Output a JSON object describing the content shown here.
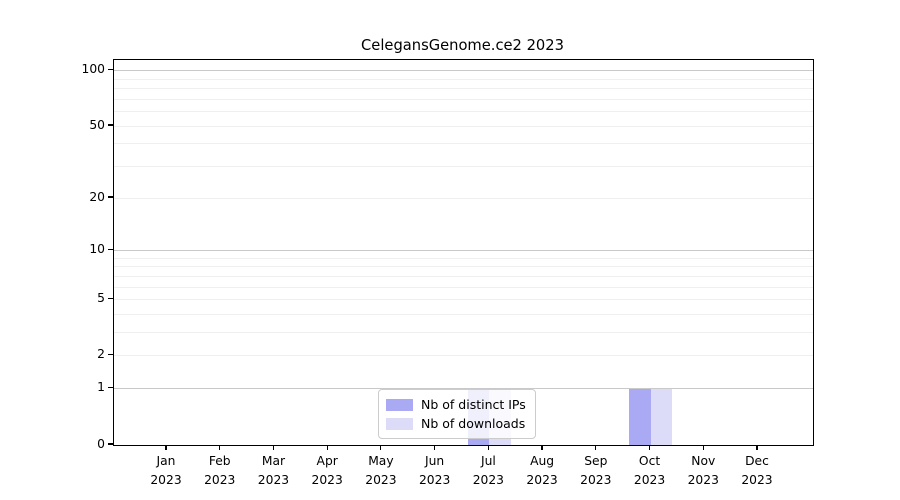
{
  "figure": {
    "background": "#ffffff"
  },
  "chart_data": {
    "type": "bar",
    "title": "CelegansGenome.ce2 2023",
    "categories": [
      "Jan 2023",
      "Feb 2023",
      "Mar 2023",
      "Apr 2023",
      "May 2023",
      "Jun 2023",
      "Jul 2023",
      "Aug 2023",
      "Sep 2023",
      "Oct 2023",
      "Nov 2023",
      "Dec 2023"
    ],
    "series": [
      {
        "name": "Nb of distinct IPs",
        "color": "#a9a9f4",
        "values": [
          0,
          0,
          0,
          0,
          0,
          0,
          1,
          0,
          0,
          1,
          0,
          0
        ]
      },
      {
        "name": "Nb of downloads",
        "color": "#dcdcf9",
        "values": [
          0,
          0,
          0,
          0,
          0,
          0,
          1,
          0,
          0,
          1,
          0,
          0
        ]
      }
    ],
    "xlabel": "",
    "ylabel": "",
    "yscale": "log1p",
    "ylim": [
      0,
      114
    ],
    "yticks": [
      0,
      1,
      2,
      5,
      10,
      20,
      50,
      100
    ],
    "minor_yticks": [
      2,
      3,
      4,
      5,
      6,
      7,
      8,
      9,
      20,
      30,
      40,
      50,
      60,
      70,
      80,
      90
    ],
    "major_grid_values": [
      1,
      10,
      100
    ],
    "grid": "horizontal",
    "legend_position": "lower-center",
    "colors": {
      "spine": "#000000",
      "major_grid": "#c9c9c9",
      "minor_grid": "#efefef",
      "text": "#000000",
      "legend_border": "#cccccc"
    }
  }
}
